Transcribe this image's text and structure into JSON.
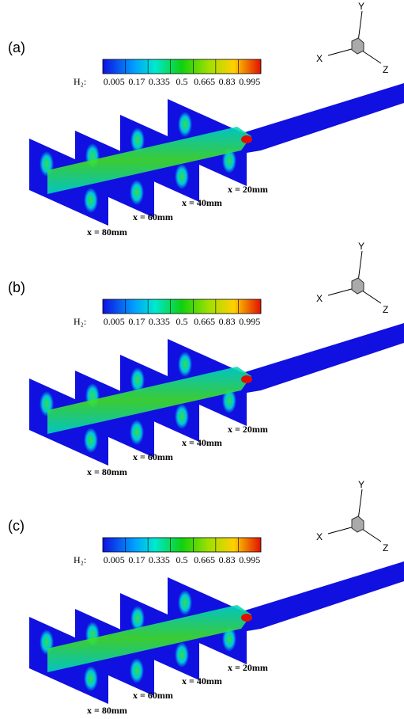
{
  "panels": [
    {
      "label": "(a)",
      "colorbar": {
        "title": "H₂:",
        "ticks": [
          "0.005",
          "0.17",
          "0.335",
          "0.5",
          "0.665",
          "0.83",
          "0.995"
        ]
      },
      "axes": {
        "y": "Y",
        "x": "X",
        "z": "Z"
      },
      "slices": [
        "x = 20mm",
        "x = 40mm",
        "x = 60mm",
        "x = 80mm"
      ]
    },
    {
      "label": "(b)",
      "colorbar": {
        "title": "H₂:",
        "ticks": [
          "0.005",
          "0.17",
          "0.335",
          "0.5",
          "0.665",
          "0.83",
          "0.995"
        ]
      },
      "axes": {
        "y": "Y",
        "x": "X",
        "z": "Z"
      },
      "slices": [
        "x = 20mm",
        "x = 40mm",
        "x = 60mm",
        "x = 80mm"
      ]
    },
    {
      "label": "(c)",
      "colorbar": {
        "title": "H₂:",
        "ticks": [
          "0.005",
          "0.17",
          "0.335",
          "0.5",
          "0.665",
          "0.83",
          "0.995"
        ]
      },
      "axes": {
        "y": "Y",
        "x": "X",
        "z": "Z"
      },
      "slices": [
        "x = 20mm",
        "x = 40mm",
        "x = 60mm",
        "x = 80mm"
      ]
    }
  ]
}
